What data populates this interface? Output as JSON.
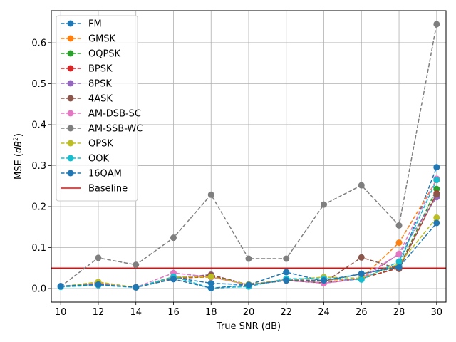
{
  "chart_data": {
    "type": "line",
    "xlabel": "True SNR (dB)",
    "ylabel_prefix": "MSE (",
    "ylabel_math": "dB",
    "ylabel_sup": "2",
    "ylabel_suffix": ")",
    "x": [
      10,
      12,
      14,
      16,
      18,
      20,
      22,
      24,
      26,
      28,
      30
    ],
    "xlim": [
      9.5,
      30.5
    ],
    "ylim": [
      -0.033,
      0.678
    ],
    "yticks": [
      0.0,
      0.1,
      0.2,
      0.3,
      0.4,
      0.5,
      0.6
    ],
    "ytick_labels": [
      "0.0",
      "0.1",
      "0.2",
      "0.3",
      "0.4",
      "0.5",
      "0.6"
    ],
    "grid": true,
    "legend_position": "top-left",
    "series": [
      {
        "name": "FM",
        "color": "#1f77b4",
        "values": [
          0.006,
          0.01,
          0.003,
          0.027,
          0.013,
          0.009,
          0.04,
          0.018,
          0.036,
          0.055,
          0.296
        ]
      },
      {
        "name": "GMSK",
        "color": "#ff7f0e",
        "values": [
          0.005,
          0.013,
          0.003,
          0.026,
          0.028,
          0.01,
          0.022,
          0.02,
          0.025,
          0.112,
          0.265
        ]
      },
      {
        "name": "OQPSK",
        "color": "#2ca02c",
        "values": [
          0.005,
          0.011,
          0.003,
          0.025,
          0.03,
          0.009,
          0.02,
          0.014,
          0.024,
          0.052,
          0.243
        ]
      },
      {
        "name": "BPSK",
        "color": "#d62728",
        "values": [
          0.005,
          0.012,
          0.003,
          0.024,
          0.03,
          0.009,
          0.02,
          0.014,
          0.025,
          0.05,
          0.232
        ]
      },
      {
        "name": "8PSK",
        "color": "#9467bd",
        "values": [
          0.005,
          0.012,
          0.003,
          0.026,
          0.034,
          0.009,
          0.02,
          0.013,
          0.024,
          0.084,
          0.223
        ]
      },
      {
        "name": "4ASK",
        "color": "#8c564b",
        "values": [
          0.005,
          0.011,
          0.003,
          0.024,
          0.033,
          0.009,
          0.02,
          0.014,
          0.076,
          0.048,
          0.23
        ]
      },
      {
        "name": "AM-DSB-SC",
        "color": "#e377c2",
        "values": [
          0.006,
          0.012,
          0.003,
          0.038,
          0.028,
          0.009,
          0.021,
          0.013,
          0.025,
          0.085,
          0.268
        ]
      },
      {
        "name": "AM-SSB-WC",
        "color": "#7f7f7f",
        "values": [
          0.005,
          0.075,
          0.058,
          0.124,
          0.229,
          0.073,
          0.073,
          0.205,
          0.252,
          0.154,
          0.645
        ]
      },
      {
        "name": "QPSK",
        "color": "#bcbd22",
        "values": [
          0.005,
          0.016,
          0.003,
          0.028,
          0.029,
          0.01,
          0.021,
          0.028,
          0.025,
          0.06,
          0.173
        ]
      },
      {
        "name": "OOK",
        "color": "#17becf",
        "values": [
          0.004,
          0.008,
          0.003,
          0.029,
          0.001,
          0.005,
          0.024,
          0.024,
          0.022,
          0.066,
          0.265
        ]
      },
      {
        "name": "16QAM",
        "color": "#1f77b4",
        "values": [
          0.006,
          0.01,
          0.003,
          0.023,
          0.001,
          0.009,
          0.02,
          0.02,
          0.036,
          0.052,
          0.16
        ]
      }
    ],
    "baseline": {
      "name": "Baseline",
      "color": "#ff0000",
      "value": 0.05
    }
  }
}
